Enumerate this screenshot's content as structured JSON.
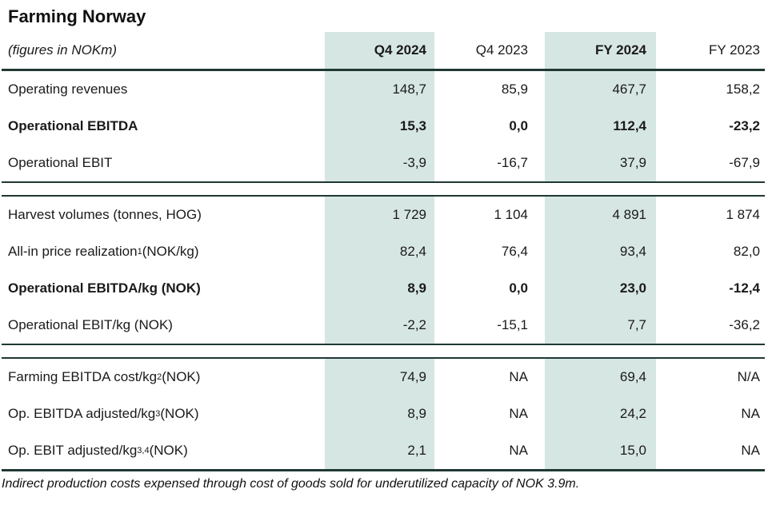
{
  "title": "Farming Norway",
  "unit_note": "(figures in NOKm)",
  "columns": [
    {
      "label": "Q4 2024",
      "bold": true,
      "highlight": true
    },
    {
      "label": "Q4 2023",
      "bold": false,
      "highlight": false
    },
    {
      "label": "FY 2024",
      "bold": true,
      "highlight": true
    },
    {
      "label": "FY 2023",
      "bold": false,
      "highlight": false
    }
  ],
  "sections": [
    {
      "rows": [
        {
          "label": "Operating revenues",
          "sup": "",
          "suffix": "",
          "bold": false,
          "values": [
            "148,7",
            "85,9",
            "467,7",
            "158,2"
          ]
        },
        {
          "label": "Operational EBITDA",
          "sup": "",
          "suffix": "",
          "bold": true,
          "values": [
            "15,3",
            "0,0",
            "112,4",
            "-23,2"
          ]
        },
        {
          "label": "Operational EBIT",
          "sup": "",
          "suffix": "",
          "bold": false,
          "values": [
            "-3,9",
            "-16,7",
            "37,9",
            "-67,9"
          ]
        }
      ]
    },
    {
      "rows": [
        {
          "label": "Harvest volumes (tonnes, HOG)",
          "sup": "",
          "suffix": "",
          "bold": false,
          "values": [
            "1 729",
            "1 104",
            "4 891",
            "1 874"
          ]
        },
        {
          "label": "All-in price realization",
          "sup": "1",
          "suffix": " (NOK/kg)",
          "bold": false,
          "values": [
            "82,4",
            "76,4",
            "93,4",
            "82,0"
          ]
        },
        {
          "label": "Operational EBITDA/kg (NOK)",
          "sup": "",
          "suffix": "",
          "bold": true,
          "values": [
            "8,9",
            "0,0",
            "23,0",
            "-12,4"
          ]
        },
        {
          "label": "Operational EBIT/kg (NOK)",
          "sup": "",
          "suffix": "",
          "bold": false,
          "values": [
            "-2,2",
            "-15,1",
            "7,7",
            "-36,2"
          ]
        }
      ]
    },
    {
      "rows": [
        {
          "label": "Farming EBITDA cost/kg",
          "sup": "2",
          "suffix": " (NOK)",
          "bold": false,
          "values": [
            "74,9",
            "NA",
            "69,4",
            "N/A"
          ]
        },
        {
          "label": "Op. EBITDA adjusted/kg",
          "sup": "3",
          "suffix": " (NOK)",
          "bold": false,
          "values": [
            "8,9",
            "NA",
            "24,2",
            "NA"
          ]
        },
        {
          "label": "Op. EBIT adjusted/kg",
          "sup": "3,4",
          "suffix": " (NOK)",
          "bold": false,
          "values": [
            "2,1",
            "NA",
            "15,0",
            "NA"
          ]
        }
      ]
    }
  ],
  "footnote": "Indirect production costs expensed through cost of goods sold for underutilized capacity of NOK 3.9m.",
  "colors": {
    "highlight": "#d6e6e3",
    "rule": "#1f3833",
    "text": "#1a1a1a"
  }
}
